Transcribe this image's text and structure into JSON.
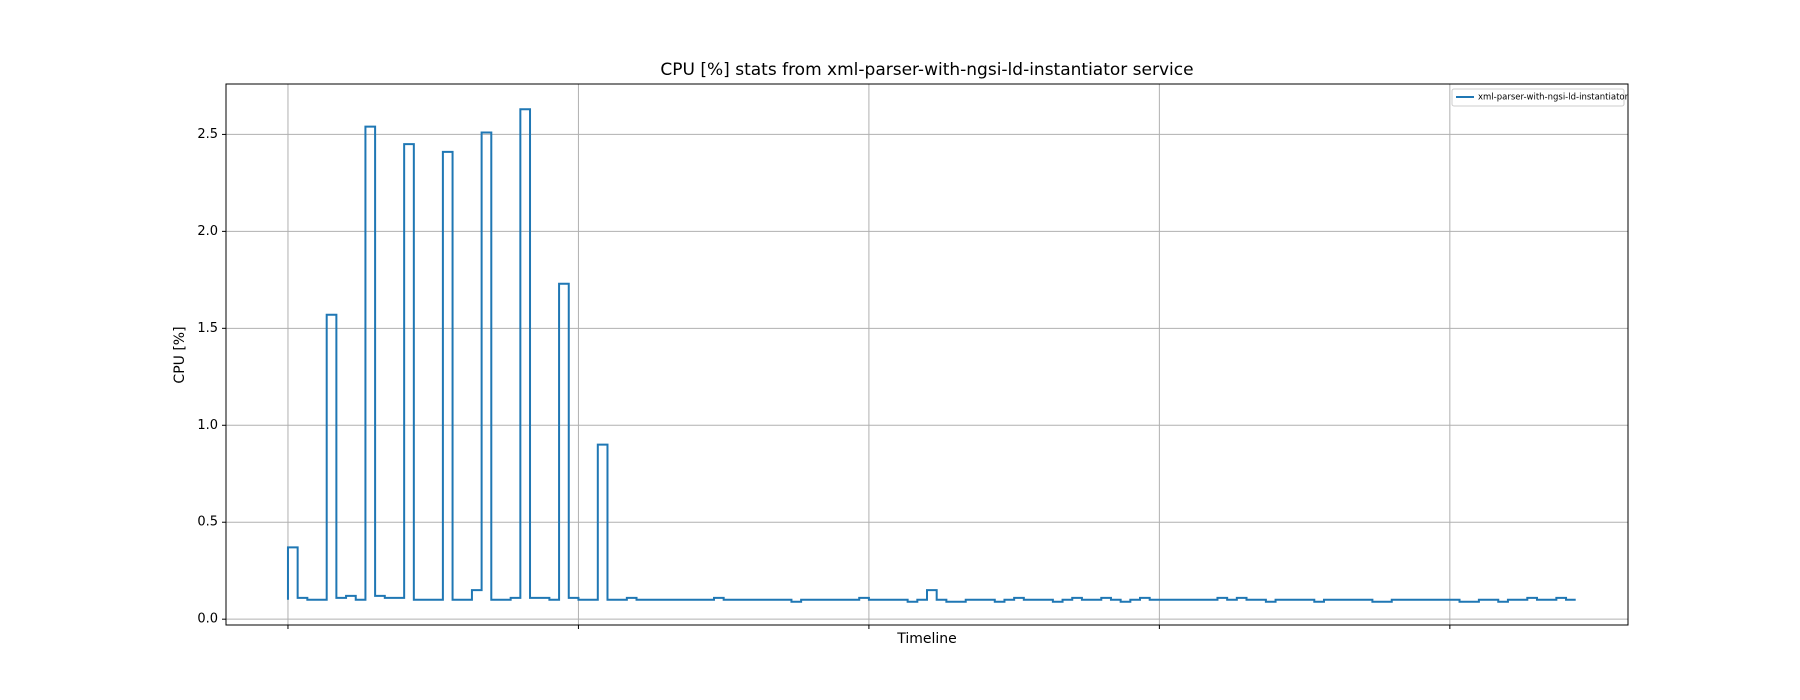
{
  "chart_data": {
    "type": "step",
    "title": "CPU [%] stats from xml-parser-with-ngsi-ld-instantiator service",
    "x_label": "Timeline",
    "y_label": "CPU [%]",
    "xlim": [
      -6.4,
      138.4
    ],
    "xticks": [
      0,
      30,
      60,
      90,
      120
    ],
    "ylim": [
      -0.03,
      2.76
    ],
    "yticks": [
      {
        "value": 0.0,
        "label": "0.0"
      },
      0.5,
      {
        "value": 1.0,
        "label": "1.0"
      },
      1.5,
      {
        "value": 2.0,
        "label": "2.0"
      },
      2.5
    ],
    "grid": true,
    "legend": "upper right",
    "series": [
      {
        "name": "xml-parser-with-ngsi-ld-instantiator",
        "color": "#1f77b4",
        "values": [
          0.1,
          0.37,
          0.11,
          0.1,
          0.1,
          1.57,
          0.11,
          0.12,
          0.1,
          2.54,
          0.12,
          0.11,
          0.11,
          2.45,
          0.1,
          0.1,
          0.1,
          2.41,
          0.1,
          0.1,
          0.15,
          2.51,
          0.1,
          0.1,
          0.11,
          2.63,
          0.11,
          0.11,
          0.1,
          1.73,
          0.11,
          0.1,
          0.1,
          0.9,
          0.1,
          0.1,
          0.11,
          0.1,
          0.1,
          0.1,
          0.1,
          0.1,
          0.1,
          0.1,
          0.1,
          0.11,
          0.1,
          0.1,
          0.1,
          0.1,
          0.1,
          0.1,
          0.1,
          0.09,
          0.1,
          0.1,
          0.1,
          0.1,
          0.1,
          0.1,
          0.11,
          0.1,
          0.1,
          0.1,
          0.1,
          0.09,
          0.1,
          0.15,
          0.1,
          0.09,
          0.09,
          0.1,
          0.1,
          0.1,
          0.09,
          0.1,
          0.11,
          0.1,
          0.1,
          0.1,
          0.09,
          0.1,
          0.11,
          0.1,
          0.1,
          0.11,
          0.1,
          0.09,
          0.1,
          0.11,
          0.1,
          0.1,
          0.1,
          0.1,
          0.1,
          0.1,
          0.1,
          0.11,
          0.1,
          0.11,
          0.1,
          0.1,
          0.09,
          0.1,
          0.1,
          0.1,
          0.1,
          0.09,
          0.1,
          0.1,
          0.1,
          0.1,
          0.1,
          0.09,
          0.09,
          0.1,
          0.1,
          0.1,
          0.1,
          0.1,
          0.1,
          0.1,
          0.09,
          0.09,
          0.1,
          0.1,
          0.09,
          0.1,
          0.1,
          0.11,
          0.1,
          0.1,
          0.11,
          0.1
        ]
      }
    ]
  }
}
